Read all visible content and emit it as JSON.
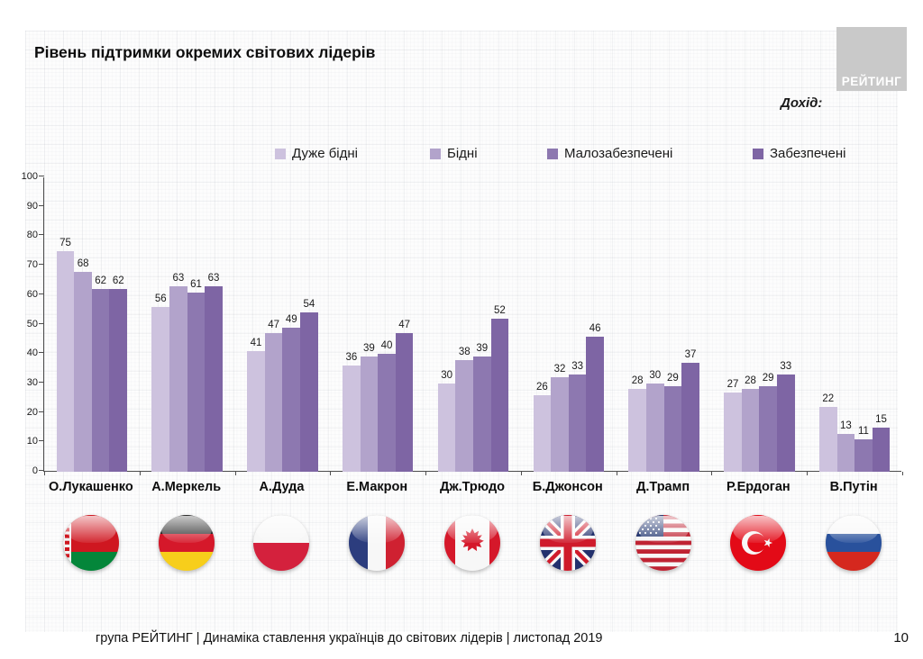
{
  "header": {
    "title": "Рівень підтримки окремих світових лідерів",
    "logo_text": "РЕЙТИНГ",
    "income_label": "Дохід:"
  },
  "chart_data": {
    "type": "bar",
    "title": "Рівень підтримки окремих світових лідерів",
    "categories": [
      "О.Лукашенко",
      "А.Меркель",
      "А.Дуда",
      "Е.Макрон",
      "Дж.Трюдо",
      "Б.Джонсон",
      "Д.Трамп",
      "Р.Ердоган",
      "В.Путін"
    ],
    "category_flags": [
      "belarus",
      "germany",
      "poland",
      "france",
      "canada",
      "uk",
      "usa",
      "turkey",
      "russia"
    ],
    "series": [
      {
        "name": "Дуже бідні",
        "color": "#cdc2de",
        "values": [
          75,
          56,
          41,
          36,
          30,
          26,
          28,
          27,
          22
        ]
      },
      {
        "name": "Бідні",
        "color": "#b2a3cb",
        "values": [
          68,
          63,
          47,
          39,
          38,
          32,
          30,
          28,
          13
        ]
      },
      {
        "name": "Малозабезпечені",
        "color": "#8d78b0",
        "values": [
          62,
          61,
          49,
          40,
          39,
          33,
          29,
          29,
          11
        ]
      },
      {
        "name": "Забезпечені",
        "color": "#7e65a4",
        "values": [
          62,
          63,
          54,
          47,
          52,
          46,
          37,
          33,
          15
        ]
      }
    ],
    "ylim": [
      0,
      100
    ],
    "yticks": [
      0,
      10,
      20,
      30,
      40,
      50,
      60,
      70,
      80,
      90,
      100
    ],
    "grid": false,
    "legend_position": "top",
    "xlabel": "",
    "ylabel": ""
  },
  "footer": {
    "text": "група РЕЙТИНГ | Динаміка ставлення українців до світових лідерів  | листопад 2019",
    "page_number": "10"
  }
}
